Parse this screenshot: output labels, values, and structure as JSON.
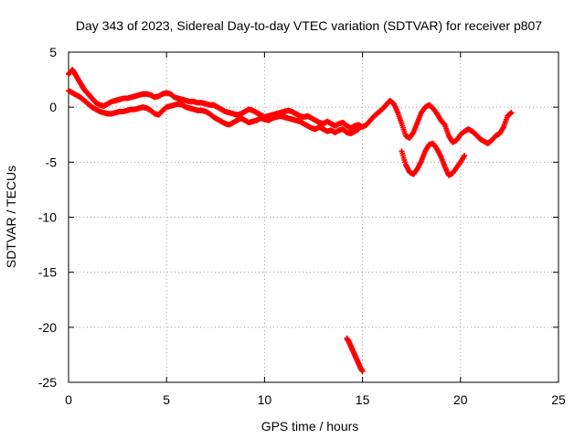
{
  "chart_data": {
    "type": "scatter",
    "title": "Day 343 of 2023, Sidereal Day-to-day VTEC variation (SDTVAR) for receiver p807",
    "xlabel": "GPS time / hours",
    "ylabel": "SDTVAR / TECUs",
    "xlim": [
      0,
      25
    ],
    "ylim": [
      -25,
      5
    ],
    "xticks": [
      0,
      5,
      10,
      15,
      20,
      25
    ],
    "yticks": [
      5,
      0,
      -5,
      -10,
      -15,
      -20,
      -25
    ],
    "grid": true,
    "marker": "plus",
    "color": "#ff0000",
    "series": [
      {
        "name": "upper-band",
        "points": [
          [
            0.0,
            3.0
          ],
          [
            0.1,
            3.2
          ],
          [
            0.2,
            3.4
          ],
          [
            0.3,
            3.1
          ],
          [
            0.4,
            2.8
          ],
          [
            0.5,
            2.5
          ],
          [
            0.6,
            2.2
          ],
          [
            0.7,
            1.9
          ],
          [
            0.8,
            1.6
          ],
          [
            0.9,
            1.4
          ],
          [
            1.0,
            1.2
          ],
          [
            1.1,
            1.0
          ],
          [
            1.2,
            0.8
          ],
          [
            1.3,
            0.6
          ],
          [
            1.4,
            0.4
          ],
          [
            1.6,
            0.2
          ],
          [
            1.8,
            0.1
          ],
          [
            2.0,
            0.3
          ],
          [
            2.2,
            0.5
          ],
          [
            2.4,
            0.6
          ],
          [
            2.6,
            0.7
          ],
          [
            2.8,
            0.8
          ],
          [
            3.0,
            0.8
          ],
          [
            3.2,
            0.9
          ],
          [
            3.4,
            1.0
          ],
          [
            3.6,
            1.1
          ],
          [
            3.8,
            1.2
          ],
          [
            4.0,
            1.2
          ],
          [
            4.2,
            1.1
          ],
          [
            4.4,
            0.9
          ],
          [
            4.6,
            1.0
          ],
          [
            4.8,
            1.2
          ],
          [
            5.0,
            1.3
          ],
          [
            5.2,
            1.2
          ],
          [
            5.4,
            0.9
          ],
          [
            5.6,
            0.8
          ],
          [
            5.8,
            0.7
          ],
          [
            6.0,
            0.6
          ],
          [
            6.2,
            0.5
          ],
          [
            6.4,
            0.5
          ],
          [
            6.6,
            0.4
          ],
          [
            6.8,
            0.4
          ],
          [
            7.0,
            0.3
          ],
          [
            7.2,
            0.2
          ],
          [
            7.4,
            0.2
          ],
          [
            7.6,
            0.0
          ],
          [
            7.8,
            -0.2
          ],
          [
            8.0,
            -0.4
          ],
          [
            8.2,
            -0.5
          ],
          [
            8.4,
            -0.6
          ],
          [
            8.6,
            -0.7
          ],
          [
            8.8,
            -0.6
          ],
          [
            9.0,
            -0.4
          ],
          [
            9.2,
            -0.2
          ],
          [
            9.4,
            -0.3
          ],
          [
            9.6,
            -0.5
          ],
          [
            9.8,
            -0.7
          ],
          [
            10.0,
            -0.9
          ],
          [
            10.2,
            -0.8
          ],
          [
            10.4,
            -0.7
          ],
          [
            10.6,
            -0.6
          ],
          [
            10.8,
            -0.5
          ],
          [
            11.0,
            -0.4
          ],
          [
            11.2,
            -0.3
          ],
          [
            11.4,
            -0.4
          ],
          [
            11.6,
            -0.6
          ],
          [
            11.8,
            -0.8
          ],
          [
            12.0,
            -0.9
          ],
          [
            12.2,
            -0.8
          ],
          [
            12.4,
            -1.0
          ],
          [
            12.6,
            -1.2
          ],
          [
            12.8,
            -1.4
          ],
          [
            13.0,
            -1.5
          ],
          [
            13.2,
            -1.3
          ],
          [
            13.4,
            -1.5
          ],
          [
            13.6,
            -1.7
          ],
          [
            13.8,
            -1.5
          ],
          [
            14.0,
            -1.4
          ],
          [
            14.2,
            -1.7
          ],
          [
            14.4,
            -1.9
          ],
          [
            14.6,
            -1.7
          ],
          [
            14.8,
            -1.6
          ],
          [
            15.0,
            -1.8
          ],
          [
            15.2,
            -1.6
          ],
          [
            15.4,
            -1.2
          ],
          [
            15.6,
            -0.8
          ],
          [
            15.8,
            -0.5
          ],
          [
            16.0,
            -0.2
          ],
          [
            16.2,
            0.2
          ],
          [
            16.4,
            0.6
          ],
          [
            16.6,
            0.3
          ],
          [
            16.8,
            -0.5
          ],
          [
            17.0,
            -1.5
          ],
          [
            17.2,
            -2.6
          ],
          [
            17.4,
            -2.8
          ],
          [
            17.6,
            -2.3
          ],
          [
            17.8,
            -1.4
          ],
          [
            18.0,
            -0.5
          ],
          [
            18.2,
            0.0
          ],
          [
            18.4,
            0.2
          ],
          [
            18.6,
            -0.1
          ],
          [
            18.8,
            -0.6
          ],
          [
            19.0,
            -1.2
          ],
          [
            19.2,
            -1.6
          ],
          [
            19.4,
            -2.6
          ],
          [
            19.6,
            -3.2
          ],
          [
            19.8,
            -3.0
          ],
          [
            20.0,
            -2.5
          ],
          [
            20.2,
            -2.2
          ],
          [
            20.4,
            -2.0
          ],
          [
            20.6,
            -2.2
          ],
          [
            20.8,
            -2.5
          ],
          [
            21.0,
            -2.9
          ],
          [
            21.2,
            -3.1
          ],
          [
            21.4,
            -3.3
          ],
          [
            21.6,
            -3.0
          ],
          [
            21.8,
            -2.6
          ],
          [
            22.0,
            -2.4
          ],
          [
            22.2,
            -1.8
          ],
          [
            22.4,
            -0.8
          ],
          [
            22.6,
            -0.5
          ]
        ]
      },
      {
        "name": "lower-band",
        "points": [
          [
            0.0,
            1.5
          ],
          [
            0.2,
            1.3
          ],
          [
            0.4,
            1.1
          ],
          [
            0.6,
            0.9
          ],
          [
            0.8,
            0.6
          ],
          [
            1.0,
            0.3
          ],
          [
            1.2,
            0.0
          ],
          [
            1.4,
            -0.2
          ],
          [
            1.6,
            -0.4
          ],
          [
            1.8,
            -0.5
          ],
          [
            2.0,
            -0.6
          ],
          [
            2.2,
            -0.6
          ],
          [
            2.4,
            -0.5
          ],
          [
            2.6,
            -0.4
          ],
          [
            2.8,
            -0.4
          ],
          [
            3.0,
            -0.3
          ],
          [
            3.2,
            -0.2
          ],
          [
            3.4,
            -0.2
          ],
          [
            3.6,
            -0.1
          ],
          [
            3.8,
            0.0
          ],
          [
            4.0,
            -0.1
          ],
          [
            4.2,
            -0.3
          ],
          [
            4.4,
            -0.6
          ],
          [
            4.6,
            -0.7
          ],
          [
            4.8,
            -0.3
          ],
          [
            5.0,
            0.0
          ],
          [
            5.2,
            0.1
          ],
          [
            5.4,
            0.2
          ],
          [
            5.6,
            0.3
          ],
          [
            5.8,
            0.2
          ],
          [
            6.0,
            0.0
          ],
          [
            6.2,
            -0.1
          ],
          [
            6.4,
            -0.2
          ],
          [
            6.6,
            -0.3
          ],
          [
            6.8,
            -0.3
          ],
          [
            7.0,
            -0.4
          ],
          [
            7.2,
            -0.6
          ],
          [
            7.4,
            -0.9
          ],
          [
            7.6,
            -1.1
          ],
          [
            7.8,
            -1.3
          ],
          [
            8.0,
            -1.5
          ],
          [
            8.2,
            -1.6
          ],
          [
            8.4,
            -1.4
          ],
          [
            8.6,
            -1.2
          ],
          [
            8.8,
            -1.0
          ],
          [
            9.0,
            -1.2
          ],
          [
            9.2,
            -1.4
          ],
          [
            9.4,
            -1.3
          ],
          [
            9.6,
            -1.2
          ],
          [
            9.8,
            -1.0
          ],
          [
            10.0,
            -1.1
          ],
          [
            10.2,
            -1.2
          ],
          [
            10.4,
            -1.0
          ],
          [
            10.6,
            -0.9
          ],
          [
            10.8,
            -0.8
          ],
          [
            11.0,
            -0.9
          ],
          [
            11.2,
            -1.0
          ],
          [
            11.4,
            -1.1
          ],
          [
            11.6,
            -1.2
          ],
          [
            11.8,
            -1.3
          ],
          [
            12.0,
            -1.5
          ],
          [
            12.2,
            -1.7
          ],
          [
            12.4,
            -1.9
          ],
          [
            12.6,
            -2.0
          ],
          [
            12.8,
            -1.8
          ],
          [
            13.0,
            -2.0
          ],
          [
            13.2,
            -2.2
          ],
          [
            13.4,
            -2.1
          ],
          [
            13.6,
            -2.3
          ],
          [
            13.8,
            -2.1
          ],
          [
            14.0,
            -2.0
          ],
          [
            14.2,
            -2.3
          ],
          [
            14.4,
            -2.4
          ],
          [
            14.6,
            -2.2
          ],
          [
            14.8,
            -2.0
          ],
          [
            17.0,
            -4.0
          ],
          [
            17.2,
            -5.2
          ],
          [
            17.4,
            -5.9
          ],
          [
            17.6,
            -6.1
          ],
          [
            17.8,
            -5.6
          ],
          [
            18.0,
            -4.9
          ],
          [
            18.2,
            -4.0
          ],
          [
            18.4,
            -3.4
          ],
          [
            18.6,
            -3.3
          ],
          [
            18.8,
            -3.8
          ],
          [
            19.0,
            -4.5
          ],
          [
            19.2,
            -5.4
          ],
          [
            19.4,
            -6.2
          ],
          [
            19.6,
            -6.0
          ],
          [
            19.8,
            -5.5
          ],
          [
            20.0,
            -5.0
          ],
          [
            20.2,
            -4.4
          ]
        ]
      },
      {
        "name": "outlier-segment",
        "points": [
          [
            14.2,
            -21.0
          ],
          [
            14.3,
            -21.3
          ],
          [
            14.4,
            -21.7
          ],
          [
            14.5,
            -22.1
          ],
          [
            14.6,
            -22.5
          ],
          [
            14.7,
            -22.9
          ],
          [
            14.8,
            -23.3
          ],
          [
            14.9,
            -23.7
          ],
          [
            15.0,
            -24.0
          ]
        ]
      }
    ]
  }
}
